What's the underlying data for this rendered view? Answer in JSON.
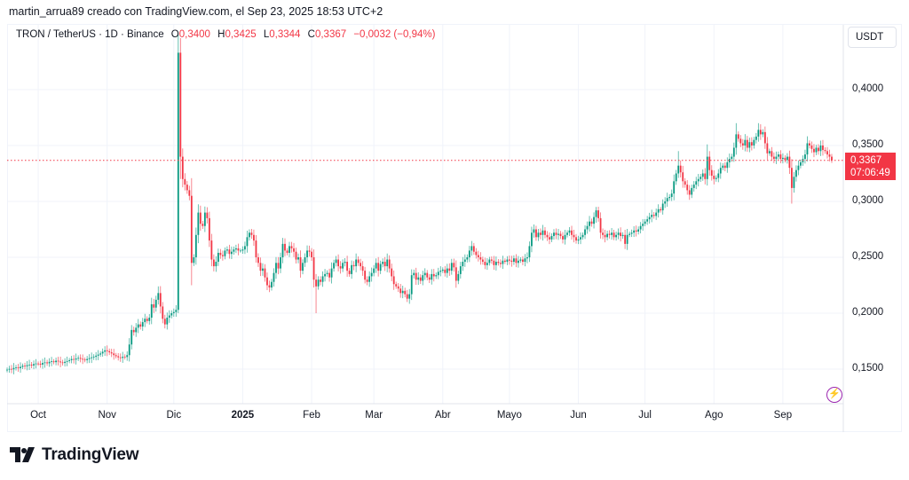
{
  "credit": "martin_arrua89 creado con TradingView.com, el Sep 23, 2025 18:53 UTC+2",
  "legend": {
    "symbol": "TRON / TetherUS · 1D · Binance",
    "open_label": "O",
    "open": "0,3400",
    "high_label": "H",
    "high": "0,3425",
    "low_label": "L",
    "low": "0,3344",
    "close_label": "C",
    "close": "0,3367",
    "change": "−0,0032 (−0,94%)"
  },
  "currency_button": "USDT",
  "last_price": {
    "price": "0,3367",
    "countdown": "07:06:49"
  },
  "brand": {
    "name": "TradingView",
    "icon": "tradingview-logo"
  },
  "colors": {
    "up": "#089981",
    "down": "#f23645",
    "grid": "#f0f3fa",
    "last_line": "#f23645",
    "alert_icon": "#9c27b0"
  },
  "chart_data": {
    "type": "candlestick",
    "title": "TRON / TetherUS · 1D · Binance",
    "interval": "1D",
    "grid": true,
    "y_axis": {
      "position": "right",
      "unit": "USDT",
      "ylim": [
        0.118,
        0.457
      ],
      "ticks": [
        {
          "value": 0.4,
          "label": "0,4000"
        },
        {
          "value": 0.35,
          "label": "0,3500"
        },
        {
          "value": 0.3,
          "label": "0,3000"
        },
        {
          "value": 0.25,
          "label": "0,2500"
        },
        {
          "value": 0.2,
          "label": "0,2000"
        },
        {
          "value": 0.15,
          "label": "0,1500"
        }
      ]
    },
    "x_axis": {
      "ticks": [
        {
          "date": "2024-10-01",
          "label": "Oct"
        },
        {
          "date": "2024-11-01",
          "label": "Nov"
        },
        {
          "date": "2024-12-01",
          "label": "Dic"
        },
        {
          "date": "2025-01-01",
          "label": "2025",
          "bold": true
        },
        {
          "date": "2025-02-01",
          "label": "Feb"
        },
        {
          "date": "2025-03-01",
          "label": "Mar"
        },
        {
          "date": "2025-04-01",
          "label": "Abr"
        },
        {
          "date": "2025-05-01",
          "label": "Mayo"
        },
        {
          "date": "2025-06-01",
          "label": "Jun"
        },
        {
          "date": "2025-07-01",
          "label": "Jul"
        },
        {
          "date": "2025-08-01",
          "label": "Ago"
        },
        {
          "date": "2025-09-01",
          "label": "Sep"
        }
      ]
    },
    "first_candle_date": "2024-09-17",
    "first_open": 0.149,
    "closes": [
      0.1495,
      0.1502,
      0.1498,
      0.151,
      0.1515,
      0.1508,
      0.152,
      0.153,
      0.1525,
      0.1535,
      0.154,
      0.1532,
      0.1545,
      0.155,
      0.1548,
      0.154,
      0.1555,
      0.156,
      0.1552,
      0.1565,
      0.157,
      0.1562,
      0.1575,
      0.1568,
      0.156,
      0.1555,
      0.1565,
      0.1572,
      0.158,
      0.159,
      0.1585,
      0.1595,
      0.16,
      0.1592,
      0.1585,
      0.158,
      0.159,
      0.1598,
      0.1605,
      0.161,
      0.162,
      0.163,
      0.164,
      0.1655,
      0.1668,
      0.166,
      0.165,
      0.164,
      0.1625,
      0.1615,
      0.1605,
      0.16,
      0.161,
      0.1608,
      0.1625,
      0.172,
      0.185,
      0.183,
      0.187,
      0.19,
      0.188,
      0.192,
      0.195,
      0.193,
      0.196,
      0.208,
      0.205,
      0.212,
      0.218,
      0.206,
      0.195,
      0.19,
      0.196,
      0.198,
      0.2,
      0.201,
      0.203,
      0.433,
      0.34,
      0.32,
      0.315,
      0.31,
      0.305,
      0.245,
      0.25,
      0.27,
      0.29,
      0.28,
      0.278,
      0.29,
      0.285,
      0.265,
      0.248,
      0.242,
      0.246,
      0.254,
      0.252,
      0.251,
      0.256,
      0.257,
      0.253,
      0.255,
      0.257,
      0.258,
      0.256,
      0.256,
      0.257,
      0.26,
      0.268,
      0.272,
      0.27,
      0.265,
      0.25,
      0.245,
      0.238,
      0.24,
      0.232,
      0.225,
      0.223,
      0.228,
      0.236,
      0.245,
      0.24,
      0.25,
      0.262,
      0.256,
      0.254,
      0.26,
      0.258,
      0.255,
      0.248,
      0.25,
      0.238,
      0.245,
      0.25,
      0.256,
      0.255,
      0.25,
      0.23,
      0.224,
      0.23,
      0.228,
      0.233,
      0.235,
      0.236,
      0.232,
      0.24,
      0.245,
      0.248,
      0.242,
      0.24,
      0.245,
      0.246,
      0.238,
      0.235,
      0.243,
      0.242,
      0.248,
      0.245,
      0.242,
      0.238,
      0.23,
      0.228,
      0.233,
      0.236,
      0.24,
      0.245,
      0.238,
      0.244,
      0.246,
      0.242,
      0.248,
      0.24,
      0.233,
      0.226,
      0.224,
      0.222,
      0.218,
      0.22,
      0.217,
      0.213,
      0.217,
      0.234,
      0.236,
      0.23,
      0.232,
      0.229,
      0.234,
      0.236,
      0.232,
      0.23,
      0.235,
      0.233,
      0.234,
      0.237,
      0.238,
      0.239,
      0.236,
      0.24,
      0.238,
      0.245,
      0.241,
      0.229,
      0.235,
      0.242,
      0.246,
      0.248,
      0.25,
      0.256,
      0.26,
      0.255,
      0.252,
      0.25,
      0.248,
      0.246,
      0.243,
      0.245,
      0.248,
      0.247,
      0.243,
      0.246,
      0.245,
      0.244,
      0.247,
      0.246,
      0.248,
      0.247,
      0.246,
      0.249,
      0.245,
      0.247,
      0.248,
      0.246,
      0.249,
      0.25,
      0.26,
      0.272,
      0.275,
      0.268,
      0.272,
      0.27,
      0.274,
      0.27,
      0.268,
      0.266,
      0.269,
      0.272,
      0.27,
      0.271,
      0.269,
      0.266,
      0.27,
      0.272,
      0.274,
      0.27,
      0.268,
      0.265,
      0.266,
      0.268,
      0.27,
      0.275,
      0.278,
      0.282,
      0.28,
      0.286,
      0.292,
      0.285,
      0.272,
      0.27,
      0.268,
      0.271,
      0.27,
      0.272,
      0.268,
      0.27,
      0.272,
      0.269,
      0.27,
      0.262,
      0.27,
      0.271,
      0.272,
      0.274,
      0.273,
      0.275,
      0.278,
      0.28,
      0.282,
      0.284,
      0.286,
      0.288,
      0.287,
      0.29,
      0.293,
      0.292,
      0.298,
      0.3,
      0.303,
      0.304,
      0.307,
      0.318,
      0.325,
      0.332,
      0.326,
      0.318,
      0.315,
      0.31,
      0.306,
      0.312,
      0.315,
      0.318,
      0.32,
      0.322,
      0.325,
      0.32,
      0.34,
      0.328,
      0.323,
      0.32,
      0.321,
      0.325,
      0.33,
      0.332,
      0.33,
      0.335,
      0.338,
      0.34,
      0.348,
      0.36,
      0.356,
      0.352,
      0.35,
      0.355,
      0.348,
      0.353,
      0.35,
      0.355,
      0.358,
      0.364,
      0.36,
      0.362,
      0.352,
      0.343,
      0.345,
      0.34,
      0.338,
      0.34,
      0.342,
      0.338,
      0.339,
      0.337,
      0.34,
      0.33,
      0.312,
      0.322,
      0.328,
      0.332,
      0.335,
      0.338,
      0.342,
      0.352,
      0.35,
      0.347,
      0.344,
      0.348,
      0.345,
      0.35,
      0.346,
      0.345,
      0.342,
      0.34,
      0.3367
    ],
    "wick_extremes": [
      {
        "date": "2024-11-24",
        "high": 0.224
      },
      {
        "date": "2024-12-03",
        "high": 0.449,
        "low": 0.2
      },
      {
        "date": "2024-12-04",
        "high": 0.446,
        "low": 0.32
      },
      {
        "date": "2024-12-09",
        "low": 0.225
      },
      {
        "date": "2025-02-03",
        "low": 0.2
      },
      {
        "date": "2025-03-16",
        "low": 0.21
      },
      {
        "date": "2025-06-09",
        "high": 0.295
      },
      {
        "date": "2025-07-16",
        "high": 0.345
      },
      {
        "date": "2025-07-29",
        "high": 0.351
      },
      {
        "date": "2025-08-11",
        "high": 0.37
      },
      {
        "date": "2025-08-21",
        "high": 0.37
      },
      {
        "date": "2025-09-05",
        "low": 0.298
      },
      {
        "date": "2025-09-23",
        "high": 0.3425,
        "low": 0.3344
      }
    ],
    "last_price": 0.3367
  }
}
